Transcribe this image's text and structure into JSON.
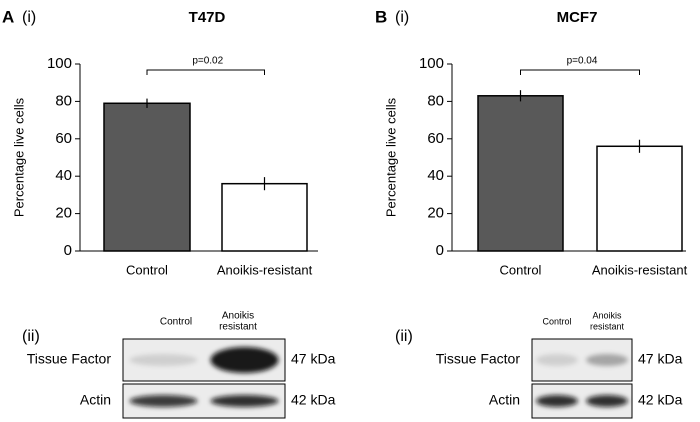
{
  "chart_data": [
    {
      "type": "bar",
      "letter": "A",
      "panel_label": "(i)",
      "title": "T47D",
      "ylabel": "Percentage live cells",
      "categories": [
        "Control",
        "Anoikis-resistant"
      ],
      "values": [
        79,
        36
      ],
      "errors": [
        2.5,
        3.5
      ],
      "colors": [
        "#595959",
        "#ffffff"
      ],
      "ylim": [
        0,
        100
      ],
      "yticks": [
        0,
        20,
        40,
        60,
        80,
        100
      ],
      "annotation": "p=0.02"
    },
    {
      "type": "bar",
      "letter": "B",
      "panel_label": "(i)",
      "title": "MCF7",
      "ylabel": "Percentage live cells",
      "categories": [
        "Control",
        "Anoikis-resistant"
      ],
      "values": [
        83,
        56
      ],
      "errors": [
        3,
        3.5
      ],
      "colors": [
        "#595959",
        "#ffffff"
      ],
      "ylim": [
        0,
        100
      ],
      "yticks": [
        0,
        20,
        40,
        60,
        80,
        100
      ],
      "annotation": "p=0.04"
    }
  ],
  "blots": [
    {
      "panel_label": "(ii)",
      "lane1": "Control",
      "lane2": [
        "Anoikis",
        "resistant"
      ],
      "rows": [
        {
          "name": "Tissue Factor",
          "size": "47 kDa"
        },
        {
          "name": "Actin",
          "size": "42 kDa"
        }
      ]
    },
    {
      "panel_label": "(ii)",
      "lane1": "Control",
      "lane2": [
        "Anoikis",
        "resistant"
      ],
      "rows": [
        {
          "name": "Tissue Factor",
          "size": "47 kDa"
        },
        {
          "name": "Actin",
          "size": "42 kDa"
        }
      ]
    }
  ]
}
